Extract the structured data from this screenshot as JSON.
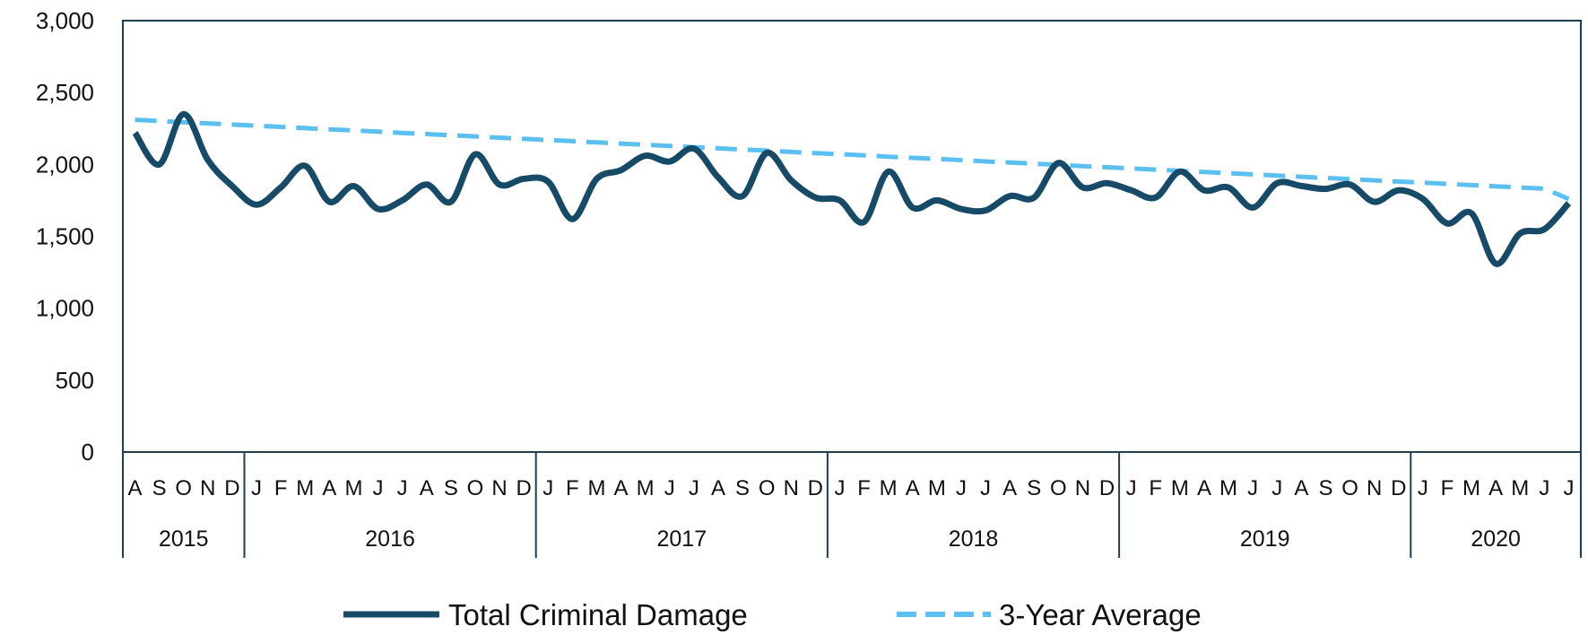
{
  "chart_data": {
    "type": "line",
    "title": "",
    "xlabel": "",
    "ylabel": "",
    "ylim": [
      0,
      3000
    ],
    "yticks": [
      "0",
      "500",
      "1,000",
      "1,500",
      "2,000",
      "2,500",
      "3,000"
    ],
    "ytick_values": [
      0,
      500,
      1000,
      1500,
      2000,
      2500,
      3000
    ],
    "grid": false,
    "legend_position": "bottom",
    "x": [
      "2015-08",
      "2015-09",
      "2015-10",
      "2015-11",
      "2015-12",
      "2016-01",
      "2016-02",
      "2016-03",
      "2016-04",
      "2016-05",
      "2016-06",
      "2016-07",
      "2016-08",
      "2016-09",
      "2016-10",
      "2016-11",
      "2016-12",
      "2017-01",
      "2017-02",
      "2017-03",
      "2017-04",
      "2017-05",
      "2017-06",
      "2017-07",
      "2017-08",
      "2017-09",
      "2017-10",
      "2017-11",
      "2017-12",
      "2018-01",
      "2018-02",
      "2018-03",
      "2018-04",
      "2018-05",
      "2018-06",
      "2018-07",
      "2018-08",
      "2018-09",
      "2018-10",
      "2018-11",
      "2018-12",
      "2019-01",
      "2019-02",
      "2019-03",
      "2019-04",
      "2019-05",
      "2019-06",
      "2019-07",
      "2019-08",
      "2019-09",
      "2019-10",
      "2019-11",
      "2019-12",
      "2020-01",
      "2020-02",
      "2020-03",
      "2020-04",
      "2020-05",
      "2020-06",
      "2020-07"
    ],
    "month_labels": [
      "A",
      "S",
      "O",
      "N",
      "D",
      "J",
      "F",
      "M",
      "A",
      "M",
      "J",
      "J",
      "A",
      "S",
      "O",
      "N",
      "D",
      "J",
      "F",
      "M",
      "A",
      "M",
      "J",
      "J",
      "A",
      "S",
      "O",
      "N",
      "D",
      "J",
      "F",
      "M",
      "A",
      "M",
      "J",
      "J",
      "A",
      "S",
      "O",
      "N",
      "D",
      "J",
      "F",
      "M",
      "A",
      "M",
      "J",
      "J",
      "A",
      "S",
      "O",
      "N",
      "D",
      "J",
      "F",
      "M",
      "A",
      "M",
      "J",
      "J"
    ],
    "year_labels": [
      "2015",
      "2016",
      "2017",
      "2018",
      "2019",
      "2020"
    ],
    "series": [
      {
        "name": "Total Criminal Damage",
        "color": "#174a66",
        "style": "solid",
        "values": [
          2220,
          2000,
          2350,
          2030,
          1850,
          1720,
          1840,
          1990,
          1740,
          1850,
          1690,
          1750,
          1860,
          1740,
          2070,
          1860,
          1900,
          1880,
          1620,
          1900,
          1960,
          2060,
          2020,
          2110,
          1910,
          1780,
          2080,
          1890,
          1770,
          1750,
          1600,
          1950,
          1700,
          1750,
          1690,
          1680,
          1780,
          1770,
          2010,
          1840,
          1870,
          1820,
          1770,
          1950,
          1820,
          1840,
          1700,
          1870,
          1850,
          1830,
          1860,
          1740,
          1820,
          1760,
          1590,
          1660,
          1310,
          1520,
          1550,
          1730
        ]
      },
      {
        "name": "3-Year Average",
        "color": "#5bc0f0",
        "style": "dashed",
        "values": [
          2310,
          2302,
          2293,
          2285,
          2277,
          2269,
          2261,
          2252,
          2244,
          2236,
          2228,
          2219,
          2211,
          2203,
          2195,
          2186,
          2178,
          2170,
          2162,
          2153,
          2145,
          2137,
          2129,
          2120,
          2112,
          2104,
          2096,
          2087,
          2079,
          2071,
          2063,
          2054,
          2046,
          2038,
          2030,
          2021,
          2013,
          2005,
          1997,
          1988,
          1980,
          1972,
          1964,
          1955,
          1947,
          1939,
          1931,
          1922,
          1914,
          1906,
          1898,
          1889,
          1881,
          1873,
          1865,
          1856,
          1848,
          1840,
          1832,
          1760
        ]
      }
    ]
  }
}
